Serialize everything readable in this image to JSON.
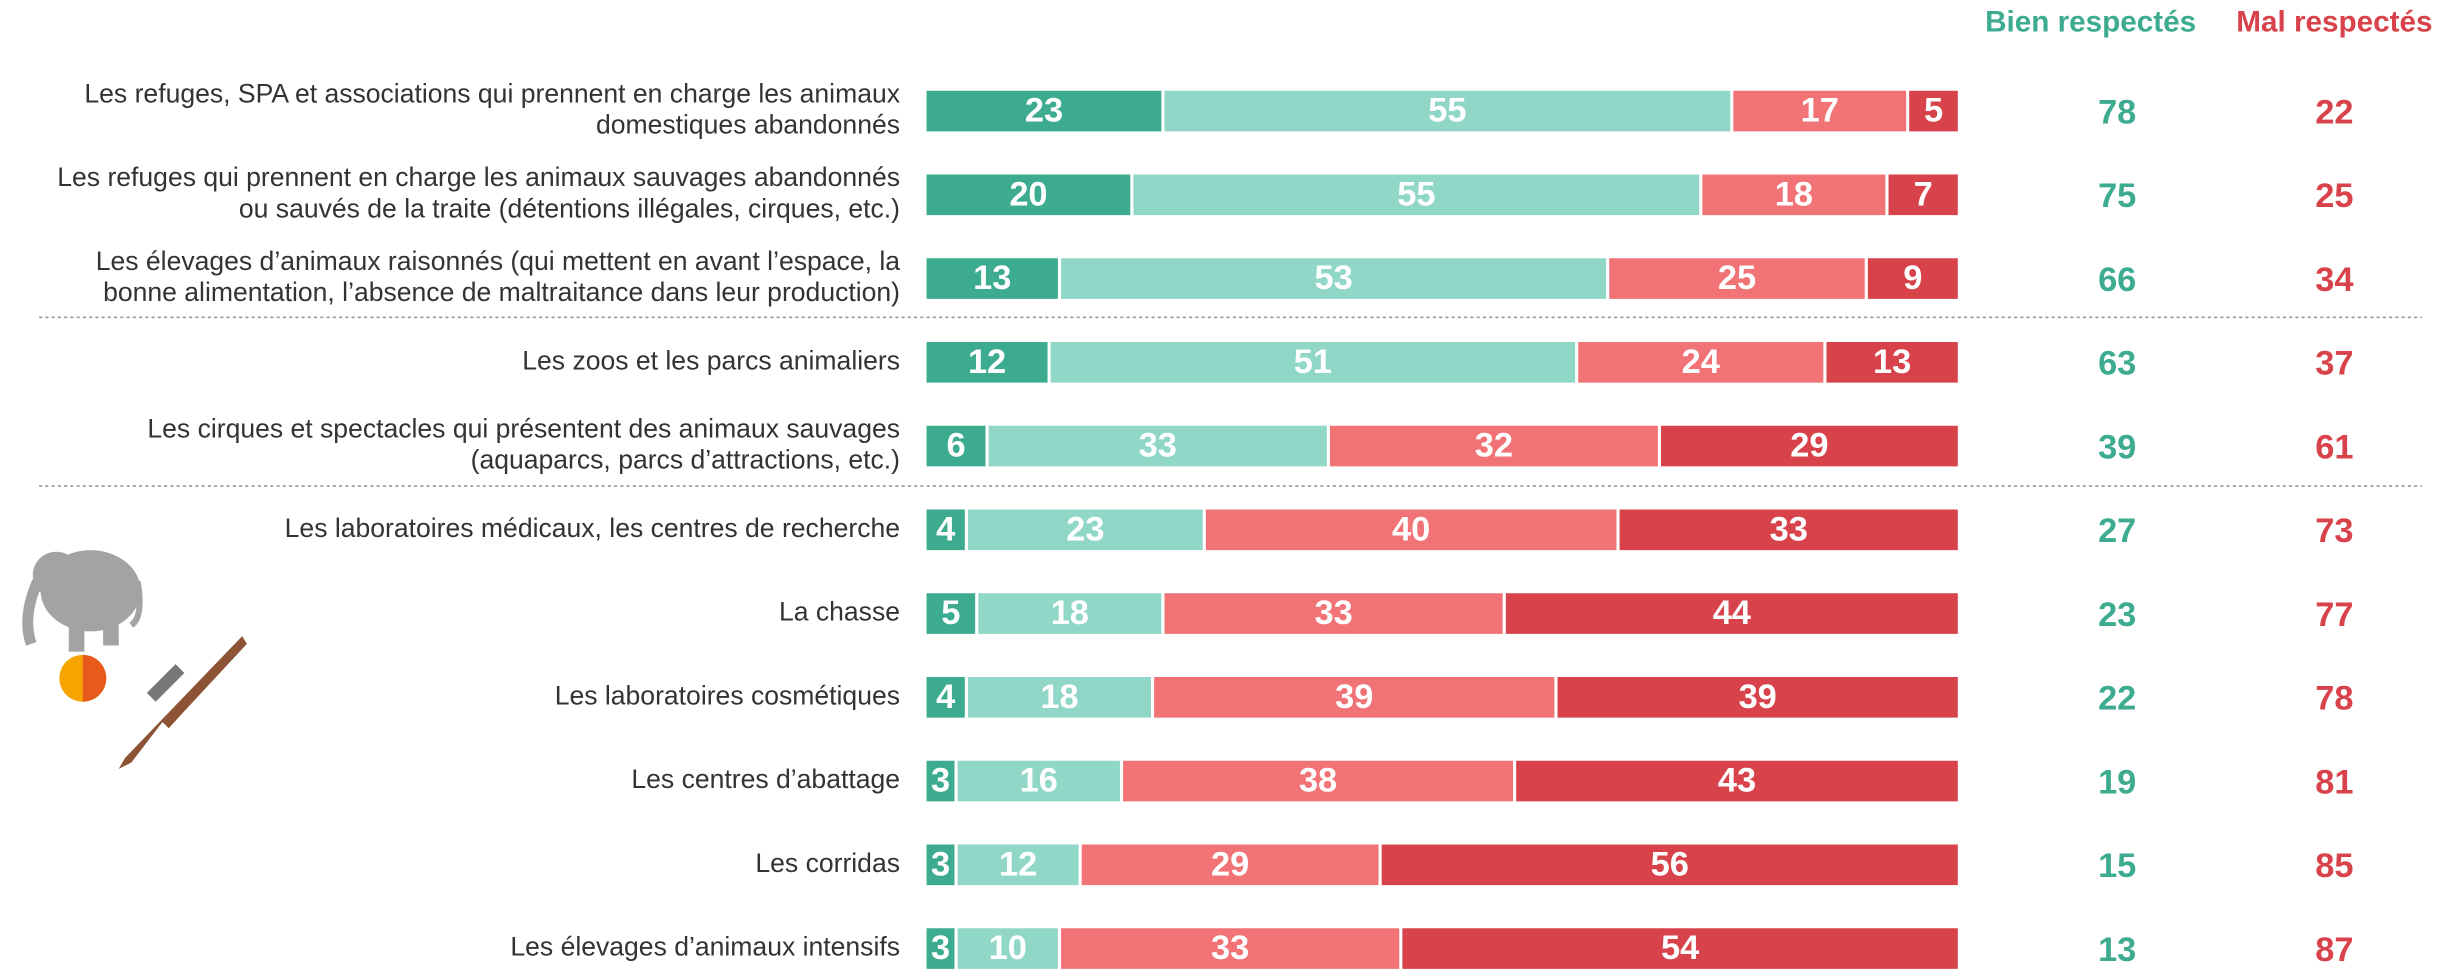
{
  "chart_data": {
    "type": "stacked-bar-horizontal",
    "categories": [
      "Les refuges, SPA et associations qui prennent en charge les animaux\ndomestiques abandonnés",
      "Les refuges qui prennent en charge les animaux sauvages abandonnés\nou sauvés de la traite (détentions illégales, cirques, etc.)",
      "Les élevages d’animaux raisonnés (qui mettent en avant l’espace, la\nbonne alimentation, l’absence de maltraitance dans leur production)",
      "Les zoos et les parcs animaliers",
      "Les cirques et spectacles qui présentent des animaux sauvages\n(aquaparcs, parcs d’attractions, etc.)",
      "Les laboratoires médicaux, les centres de recherche",
      "La chasse",
      "Les laboratoires cosmétiques",
      "Les centres d’abattage",
      "Les corridas",
      "Les élevages d’animaux intensifs"
    ],
    "xlim": [
      0,
      100
    ],
    "series": [
      {
        "color": "#3dab90",
        "values": [
          23,
          20,
          13,
          12,
          6,
          4,
          5,
          4,
          3,
          3,
          3
        ]
      },
      {
        "color": "#90d7c8",
        "values": [
          55,
          55,
          53,
          51,
          33,
          23,
          18,
          18,
          16,
          12,
          10
        ]
      },
      {
        "color": "#f17376",
        "values": [
          17,
          18,
          25,
          24,
          32,
          40,
          33,
          39,
          38,
          29,
          33
        ]
      },
      {
        "color": "#d8434b",
        "values": [
          5,
          7,
          9,
          13,
          29,
          33,
          44,
          39,
          43,
          56,
          54
        ]
      }
    ],
    "totals": [
      {
        "name": "Bien respectés",
        "color": "#3dab90",
        "values": [
          78,
          75,
          66,
          63,
          39,
          27,
          23,
          22,
          19,
          15,
          13
        ]
      },
      {
        "name": "Mal respectés",
        "color": "#d8434b",
        "values": [
          22,
          25,
          34,
          37,
          61,
          73,
          77,
          78,
          81,
          85,
          87
        ]
      }
    ]
  }
}
